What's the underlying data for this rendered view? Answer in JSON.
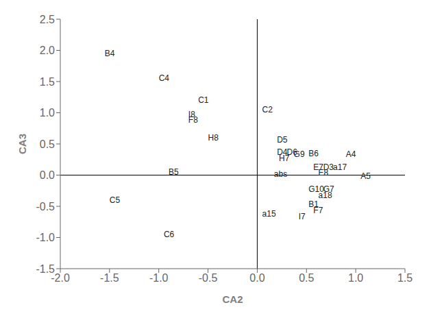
{
  "chart_data": {
    "type": "scatter",
    "xlabel": "CA2",
    "ylabel": "CA3",
    "color": "#222222",
    "points": [
      {
        "label": "B4",
        "x": -1.55,
        "y": 1.95
      },
      {
        "label": "C4",
        "x": -1.0,
        "y": 1.55
      },
      {
        "label": "C1",
        "x": -0.6,
        "y": 1.2
      },
      {
        "label": "I8",
        "x": -0.7,
        "y": 0.97
      },
      {
        "label": "F8",
        "x": -0.7,
        "y": 0.88
      },
      {
        "label": "H8",
        "x": -0.5,
        "y": 0.6
      },
      {
        "label": "C2",
        "x": 0.05,
        "y": 1.05
      },
      {
        "label": "D5",
        "x": 0.2,
        "y": 0.57
      },
      {
        "label": "D4",
        "x": 0.2,
        "y": 0.37
      },
      {
        "label": "D6",
        "x": 0.3,
        "y": 0.37
      },
      {
        "label": "G9",
        "x": 0.37,
        "y": 0.33
      },
      {
        "label": "B6",
        "x": 0.52,
        "y": 0.35
      },
      {
        "label": "H7",
        "x": 0.22,
        "y": 0.27
      },
      {
        "label": "A4",
        "x": 0.9,
        "y": 0.33
      },
      {
        "label": "E7",
        "x": 0.57,
        "y": 0.13
      },
      {
        "label": "D3",
        "x": 0.67,
        "y": 0.13
      },
      {
        "label": "a17",
        "x": 0.77,
        "y": 0.13
      },
      {
        "label": "E8",
        "x": 0.62,
        "y": 0.04
      },
      {
        "label": "abs",
        "x": 0.17,
        "y": 0.02
      },
      {
        "label": "A5",
        "x": 1.05,
        "y": -0.02
      },
      {
        "label": "G10",
        "x": 0.52,
        "y": -0.22
      },
      {
        "label": "G7",
        "x": 0.67,
        "y": -0.22
      },
      {
        "label": "a18",
        "x": 0.62,
        "y": -0.32
      },
      {
        "label": "B1",
        "x": 0.52,
        "y": -0.47
      },
      {
        "label": "F7",
        "x": 0.57,
        "y": -0.57
      },
      {
        "label": "a15",
        "x": 0.05,
        "y": -0.62
      },
      {
        "label": "I7",
        "x": 0.42,
        "y": -0.67
      },
      {
        "label": "B5",
        "x": -0.9,
        "y": 0.05
      },
      {
        "label": "C5",
        "x": -1.5,
        "y": -0.4
      },
      {
        "label": "C6",
        "x": -0.95,
        "y": -0.95
      }
    ],
    "xlim": [
      -2.0,
      1.5
    ],
    "ylim": [
      -1.5,
      2.5
    ],
    "xticks": [
      {
        "value": -2.0,
        "label": "-2.0"
      },
      -1.5,
      {
        "value": -1.0,
        "label": "-1.0"
      },
      -0.5,
      {
        "value": 0.0,
        "label": "0.0"
      },
      0.5,
      {
        "value": 1.0,
        "label": "1.0"
      },
      1.5
    ],
    "yticks": [
      -1.5,
      {
        "value": -1.0,
        "label": "-1.0"
      },
      -0.5,
      {
        "value": 0.0,
        "label": "0.0"
      },
      0.5,
      {
        "value": 1.0,
        "label": "1.0"
      },
      1.5,
      {
        "value": 2.0,
        "label": "2.0"
      },
      2.5
    ],
    "reference_lines": [
      {
        "axis": "y",
        "value": 0,
        "color": "#000000"
      },
      {
        "axis": "x",
        "value": 0,
        "color": "#000000"
      }
    ],
    "grid": false
  }
}
